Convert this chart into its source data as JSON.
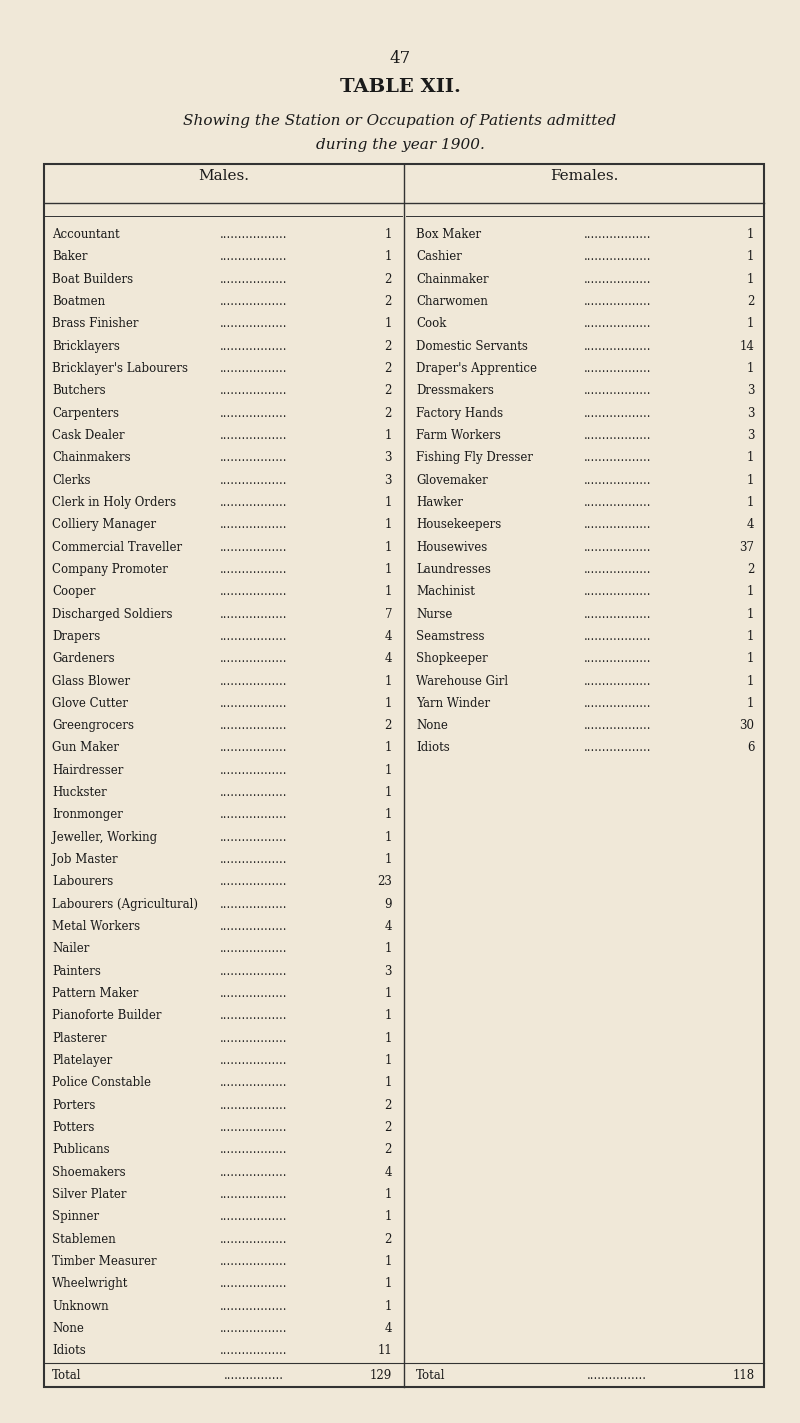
{
  "page_number": "47",
  "title": "TABLE XII.",
  "subtitle_line1": "Showing the Station or Occupation of Patients admitted",
  "subtitle_line2": "during the year 1900.",
  "males_header": "Males.",
  "females_header": "Females.",
  "males": [
    [
      "Accountant",
      "1"
    ],
    [
      "Baker",
      "1"
    ],
    [
      "Boat Builders",
      "2"
    ],
    [
      "Boatmen",
      "2"
    ],
    [
      "Brass Finisher",
      "1"
    ],
    [
      "Bricklayers",
      "2"
    ],
    [
      "Bricklayer's Labourers",
      "2"
    ],
    [
      "Butchers",
      "2"
    ],
    [
      "Carpenters",
      "2"
    ],
    [
      "Cask Dealer",
      "1"
    ],
    [
      "Chainmakers",
      "3"
    ],
    [
      "Clerks",
      "3"
    ],
    [
      "Clerk in Holy Orders",
      "1"
    ],
    [
      "Colliery Manager",
      "1"
    ],
    [
      "Commercial Traveller",
      "1"
    ],
    [
      "Company Promoter",
      "1"
    ],
    [
      "Cooper",
      "1"
    ],
    [
      "Discharged Soldiers",
      "7"
    ],
    [
      "Drapers",
      "4"
    ],
    [
      "Gardeners",
      "4"
    ],
    [
      "Glass Blower",
      "1"
    ],
    [
      "Glove Cutter",
      "1"
    ],
    [
      "Greengrocers",
      "2"
    ],
    [
      "Gun Maker",
      "1"
    ],
    [
      "Hairdresser",
      "1"
    ],
    [
      "Huckster",
      "1"
    ],
    [
      "Ironmonger",
      "1"
    ],
    [
      "Jeweller, Working",
      "1"
    ],
    [
      "Job Master",
      "1"
    ],
    [
      "Labourers",
      "23"
    ],
    [
      "Labourers (Agricultural)",
      "9"
    ],
    [
      "Metal Workers",
      "4"
    ],
    [
      "Nailer",
      "1"
    ],
    [
      "Painters",
      "3"
    ],
    [
      "Pattern Maker",
      "1"
    ],
    [
      "Pianoforte Builder",
      "1"
    ],
    [
      "Plasterer",
      "1"
    ],
    [
      "Platelayer",
      "1"
    ],
    [
      "Police Constable",
      "1"
    ],
    [
      "Porters",
      "2"
    ],
    [
      "Potters",
      "2"
    ],
    [
      "Publicans",
      "2"
    ],
    [
      "Shoemakers",
      "4"
    ],
    [
      "Silver Plater",
      "1"
    ],
    [
      "Spinner",
      "1"
    ],
    [
      "Stablemen",
      "2"
    ],
    [
      "Timber Measurer",
      "1"
    ],
    [
      "Wheelwright",
      "1"
    ],
    [
      "Unknown",
      "1"
    ],
    [
      "None",
      "4"
    ],
    [
      "Idiots",
      "11"
    ]
  ],
  "males_total": "129",
  "females": [
    [
      "Box Maker",
      "1"
    ],
    [
      "Cashier",
      "1"
    ],
    [
      "Chainmaker",
      "1"
    ],
    [
      "Charwomen",
      "2"
    ],
    [
      "Cook",
      "1"
    ],
    [
      "Domestic Servants",
      "14"
    ],
    [
      "Draper's Apprentice",
      "1"
    ],
    [
      "Dressmakers",
      "3"
    ],
    [
      "Factory Hands",
      "3"
    ],
    [
      "Farm Workers",
      "3"
    ],
    [
      "Fishing Fly Dresser",
      "1"
    ],
    [
      "Glovemaker",
      "1"
    ],
    [
      "Hawker",
      "1"
    ],
    [
      "Housekeepers",
      "4"
    ],
    [
      "Housewives",
      "37"
    ],
    [
      "Laundresses",
      "2"
    ],
    [
      "Machinist",
      "1"
    ],
    [
      "Nurse",
      "1"
    ],
    [
      "Seamstress",
      "1"
    ],
    [
      "Shopkeeper",
      "1"
    ],
    [
      "Warehouse Girl",
      "1"
    ],
    [
      "Yarn Winder",
      "1"
    ],
    [
      "None",
      "30"
    ],
    [
      "Idiots",
      "6"
    ]
  ],
  "females_total": "118",
  "bg_color": "#f0e8d8",
  "text_color": "#1a1a1a",
  "table_line_color": "#333333"
}
